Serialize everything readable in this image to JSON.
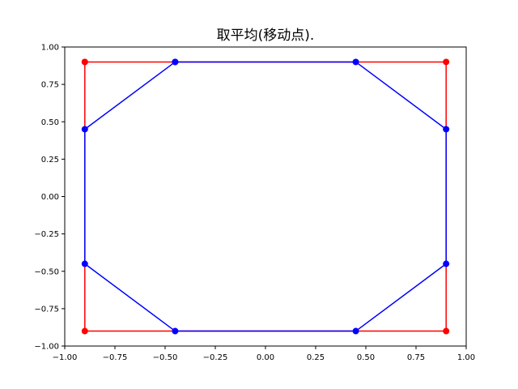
{
  "chart_data": {
    "type": "line",
    "title": "取平均(移动点).",
    "xlabel": "",
    "ylabel": "",
    "xlim": [
      -1.0,
      1.0
    ],
    "ylim": [
      -1.0,
      1.0
    ],
    "grid": false,
    "xticks": [
      "−1.00",
      "−0.75",
      "−0.50",
      "−0.25",
      "0.00",
      "0.25",
      "0.50",
      "0.75",
      "1.00"
    ],
    "yticks": [
      "−1.00",
      "−0.75",
      "−0.50",
      "−0.25",
      "0.00",
      "0.25",
      "0.50",
      "0.75",
      "1.00"
    ],
    "xtick_values": [
      -1.0,
      -0.75,
      -0.5,
      -0.25,
      0.0,
      0.25,
      0.5,
      0.75,
      1.0
    ],
    "ytick_values": [
      -1.0,
      -0.75,
      -0.5,
      -0.25,
      0.0,
      0.25,
      0.5,
      0.75,
      1.0
    ],
    "series": [
      {
        "color": "#ff0000",
        "marker": "circle",
        "x": [
          -0.9,
          0.9,
          0.9,
          -0.9,
          -0.9
        ],
        "y": [
          0.9,
          0.9,
          -0.9,
          -0.9,
          0.9
        ]
      },
      {
        "color": "#0000ff",
        "marker": "circle",
        "x": [
          -0.45,
          0.45,
          0.9,
          0.9,
          0.45,
          -0.45,
          -0.9,
          -0.9,
          -0.45
        ],
        "y": [
          0.9,
          0.9,
          0.45,
          -0.45,
          -0.9,
          -0.9,
          -0.45,
          0.45,
          0.9
        ]
      }
    ]
  }
}
